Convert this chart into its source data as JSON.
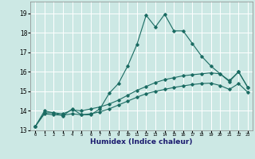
{
  "title": "",
  "xlabel": "Humidex (Indice chaleur)",
  "ylabel": "",
  "bg_color": "#cce8e4",
  "line_color": "#1a6b62",
  "grid_color": "#ffffff",
  "xlim": [
    -0.5,
    23.5
  ],
  "ylim": [
    13,
    19.6
  ],
  "yticks": [
    13,
    14,
    15,
    16,
    17,
    18,
    19
  ],
  "xtick_labels": [
    "0",
    "1",
    "2",
    "3",
    "4",
    "5",
    "6",
    "7",
    "8",
    "9",
    "10",
    "11",
    "12",
    "13",
    "14",
    "15",
    "16",
    "17",
    "18",
    "19",
    "20",
    "21",
    "22",
    "23"
  ],
  "series1_y": [
    13.2,
    14.0,
    13.9,
    13.75,
    14.1,
    13.8,
    13.8,
    14.1,
    14.9,
    15.4,
    16.3,
    17.4,
    18.9,
    18.3,
    18.95,
    18.1,
    18.1,
    17.45,
    16.8,
    16.3,
    15.9,
    15.5,
    16.0,
    15.2
  ],
  "series2_y": [
    13.2,
    13.9,
    13.9,
    13.85,
    14.05,
    14.0,
    14.1,
    14.2,
    14.35,
    14.55,
    14.8,
    15.05,
    15.25,
    15.45,
    15.6,
    15.7,
    15.8,
    15.85,
    15.9,
    15.95,
    15.9,
    15.55,
    16.0,
    15.2
  ],
  "series3_y": [
    13.2,
    13.85,
    13.8,
    13.78,
    13.85,
    13.8,
    13.85,
    13.95,
    14.1,
    14.3,
    14.5,
    14.7,
    14.88,
    15.0,
    15.1,
    15.2,
    15.28,
    15.35,
    15.4,
    15.42,
    15.3,
    15.1,
    15.4,
    14.95
  ]
}
